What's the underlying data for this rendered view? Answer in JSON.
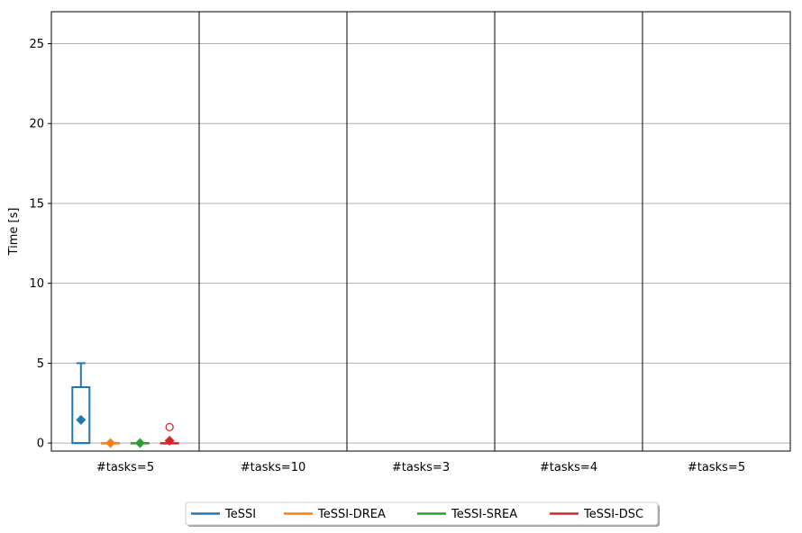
{
  "chart_data": {
    "type": "box",
    "ylabel": "Time [s]",
    "ylim": [
      -0.5,
      27
    ],
    "yticks": [
      0,
      5,
      10,
      15,
      20,
      25
    ],
    "grid": true,
    "groups": [
      "#tasks=5",
      "#tasks=10",
      "#tasks=3",
      "#tasks=4",
      "#tasks=5"
    ],
    "legend_position": "bottom-center",
    "series": [
      {
        "name": "TeSSI",
        "color": "#1f77b4"
      },
      {
        "name": "TeSSI-DREA",
        "color": "#ff7f0e"
      },
      {
        "name": "TeSSI-SREA",
        "color": "#2ca02c"
      },
      {
        "name": "TeSSI-DSC",
        "color": "#d62728"
      }
    ],
    "boxes": [
      {
        "group": 0,
        "series": 0,
        "min": 0,
        "q1": 0,
        "median": 0,
        "q3": 3.5,
        "max": 5,
        "mean": 1.45,
        "outliers": []
      },
      {
        "group": 0,
        "series": 1,
        "min": 0,
        "q1": 0,
        "median": 0,
        "q3": 0,
        "max": 0,
        "mean": 0,
        "outliers": []
      },
      {
        "group": 0,
        "series": 2,
        "min": 0,
        "q1": 0,
        "median": 0,
        "q3": 0,
        "max": 0,
        "mean": 0,
        "outliers": []
      },
      {
        "group": 0,
        "series": 3,
        "min": 0,
        "q1": 0,
        "median": 0,
        "q3": 0,
        "max": 0,
        "mean": 0.15,
        "outliers": [
          1.0
        ]
      }
    ]
  }
}
